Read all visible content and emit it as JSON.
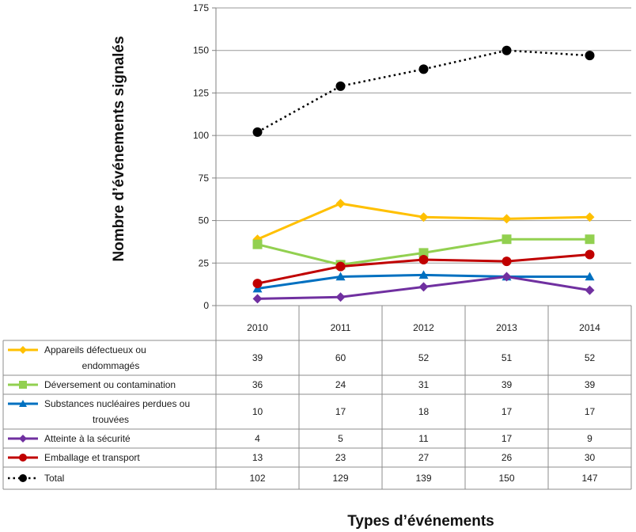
{
  "chart_data": {
    "type": "line",
    "title": "",
    "xlabel": "Types d’événements",
    "ylabel": "Nombre d’événements signalés",
    "ylim": [
      0,
      175
    ],
    "yticks": [
      0,
      25,
      50,
      75,
      100,
      125,
      150,
      175
    ],
    "categories": [
      "2010",
      "2011",
      "2012",
      "2013",
      "2014"
    ],
    "grid": "horizontal",
    "legend": "data-table",
    "series": [
      {
        "name": "Appareils défectueux ou endommagés",
        "name_lines": [
          "Appareils défectueux ou",
          "endommagés"
        ],
        "values": [
          39,
          60,
          52,
          51,
          52
        ],
        "color": "#FFC000",
        "marker": "diamond",
        "line": "solid"
      },
      {
        "name": "Déversement ou contamination",
        "name_lines": [
          "Déversement ou contamination"
        ],
        "values": [
          36,
          24,
          31,
          39,
          39
        ],
        "color": "#92D050",
        "marker": "square",
        "line": "solid"
      },
      {
        "name": "Substances nucléaires perdues ou trouvées",
        "name_lines": [
          "Substances nucléaires perdues ou",
          "trouvées"
        ],
        "values": [
          10,
          17,
          18,
          17,
          17
        ],
        "color": "#0070C0",
        "marker": "triangle",
        "line": "solid"
      },
      {
        "name": "Atteinte à la sécurité",
        "name_lines": [
          "Atteinte à la sécurité"
        ],
        "values": [
          4,
          5,
          11,
          17,
          9
        ],
        "color": "#7030A0",
        "marker": "diamond",
        "line": "solid"
      },
      {
        "name": "Emballage et transport",
        "name_lines": [
          "Emballage et transport"
        ],
        "values": [
          13,
          23,
          27,
          26,
          30
        ],
        "color": "#C00000",
        "marker": "circle",
        "line": "solid"
      },
      {
        "name": "Total",
        "name_lines": [
          "Total"
        ],
        "values": [
          102,
          129,
          139,
          150,
          147
        ],
        "color": "#000000",
        "marker": "circle",
        "line": "dotted"
      }
    ]
  }
}
